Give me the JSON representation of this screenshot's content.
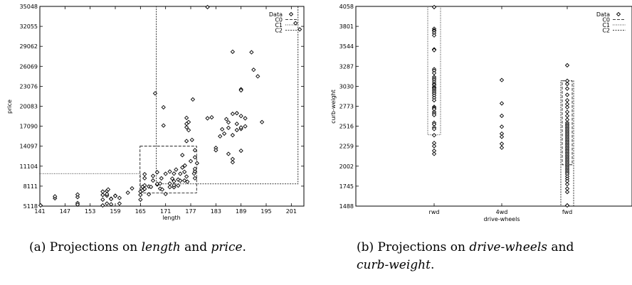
{
  "figure": {
    "caption_a": {
      "prefix": "(a) Projections on ",
      "var1": "length",
      "mid": " and ",
      "var2": "price",
      "suffix": "."
    },
    "caption_b": {
      "prefix": "(b) Projections on ",
      "var1": "drive-wheels",
      "mid": " and",
      "var2": "curb-weight",
      "suffix": "."
    }
  },
  "chart_data": [
    {
      "type": "scatter",
      "title": "",
      "xlabel": "length",
      "ylabel": "price",
      "xlim": [
        141,
        204
      ],
      "ylim": [
        5118,
        35048
      ],
      "xticks": [
        "141",
        "147",
        "153",
        "159",
        "165",
        "171",
        "177",
        "183",
        "189",
        "195",
        "201"
      ],
      "yticks": [
        "5118",
        "8111",
        "11104",
        "14097",
        "17090",
        "20083",
        "23076",
        "26069",
        "29062",
        "32055",
        "35048"
      ],
      "legend": {
        "position": "top-right",
        "entries": [
          "Data",
          "C0",
          "C1",
          "C2"
        ]
      },
      "series": [
        {
          "name": "Data",
          "points": [
            [
              141.1,
              5151
            ],
            [
              144.6,
              6295
            ],
            [
              144.6,
              6575
            ],
            [
              150,
              6479
            ],
            [
              150,
              6855
            ],
            [
              150,
              5572
            ],
            [
              150,
              5348
            ],
            [
              156,
              5195
            ],
            [
              156,
              6095
            ],
            [
              156,
              6795
            ],
            [
              156,
              7295
            ],
            [
              157,
              7395
            ],
            [
              157,
              6695
            ],
            [
              157,
              5500
            ],
            [
              157,
              6918
            ],
            [
              157.3,
              7609
            ],
            [
              158,
              6229
            ],
            [
              158,
              5389
            ],
            [
              158,
              6189
            ],
            [
              159,
              6669
            ],
            [
              159,
              6649
            ],
            [
              160,
              5499
            ],
            [
              160,
              6338
            ],
            [
              162,
              7126
            ],
            [
              163,
              7775
            ],
            [
              165,
              6095
            ],
            [
              165,
              6795
            ],
            [
              165,
              7299
            ],
            [
              165.5,
              7463
            ],
            [
              165.5,
              8013
            ],
            [
              166,
              8238
            ],
            [
              166,
              9295
            ],
            [
              166,
              9895
            ],
            [
              166,
              7689
            ],
            [
              167,
              8058
            ],
            [
              167,
              6888
            ],
            [
              167.5,
              7999
            ],
            [
              168,
              8948
            ],
            [
              168,
              9639
            ],
            [
              168.5,
              22018
            ],
            [
              169,
              10198
            ],
            [
              169,
              8358
            ],
            [
              169,
              8449
            ],
            [
              169.7,
              7738
            ],
            [
              169.7,
              8499
            ],
            [
              170,
              9279
            ],
            [
              170.2,
              7603
            ],
            [
              170.5,
              19928
            ],
            [
              170.5,
              17199
            ],
            [
              171,
              6938
            ],
            [
              171,
              9959
            ],
            [
              172,
              7975
            ],
            [
              172,
              8495
            ],
            [
              172,
              10295
            ],
            [
              172.6,
              9233
            ],
            [
              173,
              8845
            ],
            [
              173,
              7957
            ],
            [
              173,
              8249
            ],
            [
              173,
              9989
            ],
            [
              173.5,
              10595
            ],
            [
              174,
              9095
            ],
            [
              174,
              8195
            ],
            [
              174.5,
              8921
            ],
            [
              174.5,
              9960
            ],
            [
              175,
              12764
            ],
            [
              175,
              10898
            ],
            [
              175.5,
              8948
            ],
            [
              175.5,
              10245
            ],
            [
              175.6,
              11199
            ],
            [
              176,
              14869
            ],
            [
              176,
              18344
            ],
            [
              176,
              16925
            ],
            [
              176,
              17450
            ],
            [
              176,
              9549
            ],
            [
              176.2,
              8778
            ],
            [
              176.5,
              16500
            ],
            [
              176.5,
              17710
            ],
            [
              177,
              11850
            ],
            [
              177.3,
              15040
            ],
            [
              177.5,
              21105
            ],
            [
              177.8,
              9988
            ],
            [
              178,
              10345
            ],
            [
              178,
              10698
            ],
            [
              178.5,
              11549
            ],
            [
              178,
              12440
            ],
            [
              178,
              13499
            ],
            [
              178,
              9298
            ],
            [
              181,
              18280
            ],
            [
              182,
              18420
            ],
            [
              183,
              13845
            ],
            [
              183,
              13495
            ],
            [
              184,
              15580
            ],
            [
              184.5,
              16630
            ],
            [
              185,
              15985
            ],
            [
              185.5,
              18150
            ],
            [
              186,
              12945
            ],
            [
              186,
              16845
            ],
            [
              186,
              17669
            ],
            [
              187,
              11694
            ],
            [
              187,
              12170
            ],
            [
              187,
              15750
            ],
            [
              187,
              18950
            ],
            [
              187,
              28248
            ],
            [
              188,
              16515
            ],
            [
              188,
              17450
            ],
            [
              188,
              19045
            ],
            [
              189,
              13415
            ],
            [
              189,
              16695
            ],
            [
              189,
              16900
            ],
            [
              189,
              18620
            ],
            [
              189,
              22625
            ],
            [
              189,
              22470
            ],
            [
              190,
              18280
            ],
            [
              190,
              17075
            ],
            [
              191.5,
              28176
            ],
            [
              192,
              25552
            ],
            [
              193,
              24565
            ],
            [
              194,
              17710
            ],
            [
              202,
              32528
            ],
            [
              203,
              31600
            ],
            [
              181,
              35056
            ]
          ]
        }
      ],
      "clusters": [
        {
          "name": "C0",
          "x": [
            164.9,
            178.4
          ],
          "y": [
            7099,
            14097
          ]
        },
        {
          "name": "C1",
          "x": [
            141,
            165
          ],
          "y": [
            5118,
            9988
          ]
        },
        {
          "name": "C2",
          "x": [
            168.8,
            202.6
          ],
          "y": [
            8449,
            35048
          ]
        }
      ]
    },
    {
      "type": "scatter",
      "title": "",
      "xlabel": "drive-wheels",
      "ylabel": "curb-weight",
      "categories": [
        "rwd",
        "4wd",
        "fwd"
      ],
      "ylim": [
        1488,
        4058
      ],
      "yticks": [
        "1488",
        "1745",
        "2002",
        "2259",
        "2516",
        "2773",
        "3030",
        "3287",
        "3544",
        "3801",
        "4058"
      ],
      "legend": {
        "position": "top-right",
        "entries": [
          "Data",
          "C0",
          "C1",
          "C2"
        ]
      },
      "series": [
        {
          "name": "Data",
          "points": [
            [
              "rwd",
              4066
            ],
            [
              "rwd",
              3770
            ],
            [
              "rwd",
              3750
            ],
            [
              "rwd",
              3740
            ],
            [
              "rwd",
              3715
            ],
            [
              "rwd",
              3685
            ],
            [
              "rwd",
              3505
            ],
            [
              "rwd",
              3495
            ],
            [
              "rwd",
              3250
            ],
            [
              "rwd",
              3230
            ],
            [
              "rwd",
              3200
            ],
            [
              "rwd",
              3150
            ],
            [
              "rwd",
              3130
            ],
            [
              "rwd",
              3110
            ],
            [
              "rwd",
              3085
            ],
            [
              "rwd",
              3060
            ],
            [
              "rwd",
              3045
            ],
            [
              "rwd",
              3020
            ],
            [
              "rwd",
              3010
            ],
            [
              "rwd",
              2995
            ],
            [
              "rwd",
              2975
            ],
            [
              "rwd",
              2955
            ],
            [
              "rwd",
              2935
            ],
            [
              "rwd",
              2910
            ],
            [
              "rwd",
              2880
            ],
            [
              "rwd",
              2850
            ],
            [
              "rwd",
              2765
            ],
            [
              "rwd",
              2750
            ],
            [
              "rwd",
              2735
            ],
            [
              "rwd",
              2700
            ],
            [
              "rwd",
              2680
            ],
            [
              "rwd",
              2660
            ],
            [
              "rwd",
              2560
            ],
            [
              "rwd",
              2540
            ],
            [
              "rwd",
              2500
            ],
            [
              "rwd",
              2480
            ],
            [
              "rwd",
              2400
            ],
            [
              "rwd",
              2300
            ],
            [
              "rwd",
              2260
            ],
            [
              "rwd",
              2200
            ],
            [
              "rwd",
              2160
            ],
            [
              "4wd",
              3110
            ],
            [
              "4wd",
              2810
            ],
            [
              "4wd",
              2650
            ],
            [
              "4wd",
              2510
            ],
            [
              "4wd",
              2420
            ],
            [
              "4wd",
              2380
            ],
            [
              "4wd",
              2290
            ],
            [
              "4wd",
              2240
            ],
            [
              "fwd",
              3300
            ],
            [
              "fwd",
              3100
            ],
            [
              "fwd",
              3060
            ],
            [
              "fwd",
              3000
            ],
            [
              "fwd",
              2920
            ],
            [
              "fwd",
              2850
            ],
            [
              "fwd",
              2800
            ],
            [
              "fwd",
              2760
            ],
            [
              "fwd",
              2700
            ],
            [
              "fwd",
              2650
            ],
            [
              "fwd",
              2600
            ],
            [
              "fwd",
              2560
            ],
            [
              "fwd",
              2540
            ],
            [
              "fwd",
              2520
            ],
            [
              "fwd",
              2500
            ],
            [
              "fwd",
              2480
            ],
            [
              "fwd",
              2460
            ],
            [
              "fwd",
              2440
            ],
            [
              "fwd",
              2420
            ],
            [
              "fwd",
              2400
            ],
            [
              "fwd",
              2380
            ],
            [
              "fwd",
              2360
            ],
            [
              "fwd",
              2340
            ],
            [
              "fwd",
              2320
            ],
            [
              "fwd",
              2300
            ],
            [
              "fwd",
              2280
            ],
            [
              "fwd",
              2260
            ],
            [
              "fwd",
              2240
            ],
            [
              "fwd",
              2220
            ],
            [
              "fwd",
              2200
            ],
            [
              "fwd",
              2180
            ],
            [
              "fwd",
              2160
            ],
            [
              "fwd",
              2140
            ],
            [
              "fwd",
              2120
            ],
            [
              "fwd",
              2100
            ],
            [
              "fwd",
              2080
            ],
            [
              "fwd",
              2060
            ],
            [
              "fwd",
              2040
            ],
            [
              "fwd",
              2020
            ],
            [
              "fwd",
              2000
            ],
            [
              "fwd",
              1980
            ],
            [
              "fwd",
              1960
            ],
            [
              "fwd",
              1940
            ],
            [
              "fwd",
              1920
            ],
            [
              "fwd",
              1900
            ],
            [
              "fwd",
              1870
            ],
            [
              "fwd",
              1840
            ],
            [
              "fwd",
              1810
            ],
            [
              "fwd",
              1770
            ],
            [
              "fwd",
              1713
            ],
            [
              "fwd",
              1670
            ],
            [
              "fwd",
              1488
            ]
          ]
        }
      ],
      "clusters": [
        {
          "name": "C0",
          "category": "fwd",
          "y": [
            2020,
            3100
          ]
        },
        {
          "name": "C1",
          "category": "rwd",
          "y": [
            2405,
            4058
          ]
        },
        {
          "name": "C2",
          "category": "fwd",
          "y": [
            1488,
            3100
          ]
        }
      ]
    }
  ]
}
